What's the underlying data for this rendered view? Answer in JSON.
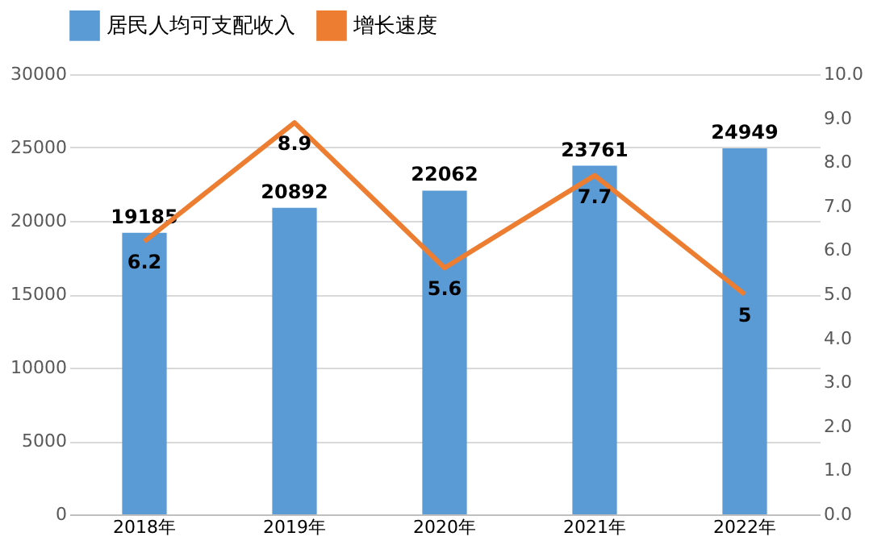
{
  "chart_data": {
    "type": "bar",
    "categories": [
      "2018年",
      "2019年",
      "2020年",
      "2021年",
      "2022年"
    ],
    "series": [
      {
        "name": "居民人均可支配收入",
        "color": "#5b9bd5",
        "values": [
          19185,
          20892,
          22062,
          23761,
          24949
        ]
      },
      {
        "name": "增长速度",
        "type": "line",
        "axis": "y2",
        "color": "#ed7d31",
        "values": [
          6.2,
          8.9,
          5.6,
          7.7,
          5
        ]
      }
    ],
    "ylim": [
      0,
      30000
    ],
    "yticks": [
      0,
      5000,
      10000,
      15000,
      20000,
      25000,
      30000
    ],
    "y2lim": [
      0,
      10
    ],
    "y2ticks": [
      {
        "value": 0,
        "label": "0.0"
      },
      {
        "value": 1,
        "label": "1.0"
      },
      {
        "value": 2,
        "label": "2.0"
      },
      {
        "value": 3,
        "label": "3.0"
      },
      {
        "value": 4,
        "label": "4.0"
      },
      {
        "value": 5,
        "label": "5.0"
      },
      {
        "value": 6,
        "label": "6.0"
      },
      {
        "value": 7,
        "label": "7.0"
      },
      {
        "value": 8,
        "label": "8.0"
      },
      {
        "value": 9,
        "label": "9.0"
      },
      {
        "value": 10,
        "label": "10.0"
      }
    ],
    "grid": "y",
    "legend": "top",
    "data_labels": true,
    "marker": "none"
  }
}
